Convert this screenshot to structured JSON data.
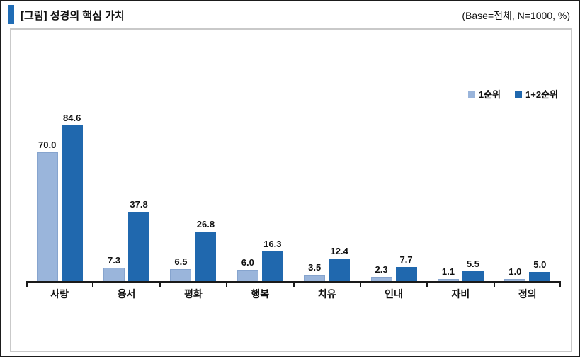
{
  "header": {
    "title": "[그림] 성경의 핵심 가치",
    "base_note": "(Base=전체,  N=1000,  %)"
  },
  "colors": {
    "accent": "#1F6CB5",
    "series1_light": "#9AB5DB",
    "series2_dark": "#2068AE",
    "axis": "#1a1a1a",
    "frame_border": "#c9c9c9"
  },
  "chart_data": {
    "type": "bar",
    "title": "[그림] 성경의 핵심 가치",
    "categories": [
      "사랑",
      "용서",
      "평화",
      "행복",
      "치유",
      "인내",
      "자비",
      "정의"
    ],
    "series": [
      {
        "name": "1순위",
        "color": "#9AB5DB",
        "values": [
          70.0,
          7.3,
          6.5,
          6.0,
          3.5,
          2.3,
          1.1,
          1.0
        ]
      },
      {
        "name": "1+2순위",
        "color": "#2068AE",
        "values": [
          84.6,
          37.8,
          26.8,
          16.3,
          12.4,
          7.7,
          5.5,
          5.0
        ]
      }
    ],
    "value_labels": true,
    "xlabel": "",
    "ylabel": "",
    "ylim": [
      0,
      100
    ],
    "grid": false,
    "legend_position": "top-right"
  }
}
